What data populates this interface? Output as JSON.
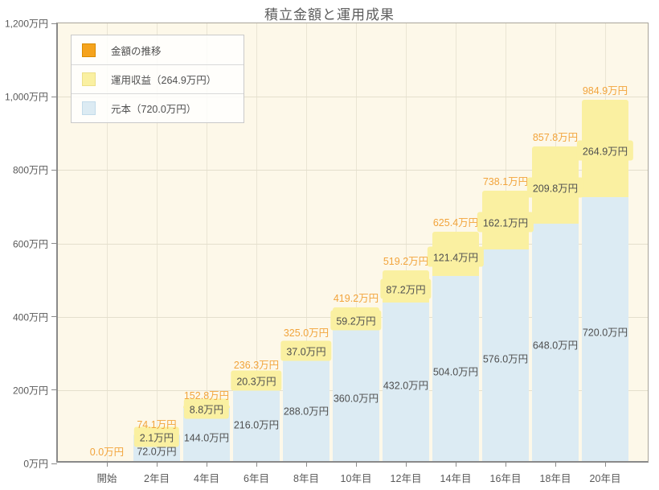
{
  "title": "積立金額と運用成果",
  "legend": {
    "items": [
      {
        "name": "amount-transition",
        "label": "金額の推移",
        "color": "#f5a31d",
        "border": "#d98b00"
      },
      {
        "name": "investment-return",
        "label": "運用収益（264.9万円）",
        "color": "#faf0a1",
        "border": "#ece089"
      },
      {
        "name": "principal",
        "label": "元本（720.0万円）",
        "color": "#dcebf3",
        "border": "#c3dbea"
      }
    ]
  },
  "chart_data": {
    "type": "bar",
    "stacked": true,
    "title": "積立金額と運用成果",
    "unit": "万円",
    "categories": [
      "開始",
      "2年目",
      "4年目",
      "6年目",
      "8年目",
      "10年目",
      "12年目",
      "14年目",
      "16年目",
      "18年目",
      "20年目"
    ],
    "series": [
      {
        "name": "元本",
        "color": "#dcebf3",
        "values": [
          0,
          72.0,
          144.0,
          216.0,
          288.0,
          360.0,
          432.0,
          504.0,
          576.0,
          648.0,
          720.0
        ]
      },
      {
        "name": "運用収益",
        "color": "#faf0a1",
        "values": [
          0,
          2.1,
          8.8,
          20.3,
          37.0,
          59.2,
          87.2,
          121.4,
          162.1,
          209.8,
          264.9
        ]
      }
    ],
    "totals": [
      0,
      74.1,
      152.8,
      236.3,
      325.0,
      419.2,
      519.2,
      625.4,
      738.1,
      857.8,
      984.9
    ],
    "labels": {
      "total": [
        "0.0万円",
        "74.1万円",
        "152.8万円",
        "236.3万円",
        "325.0万円",
        "419.2万円",
        "519.2万円",
        "625.4万円",
        "738.1万円",
        "857.8万円",
        "984.9万円"
      ],
      "income": [
        null,
        "2.1万円",
        "8.8万円",
        "20.3万円",
        "37.0万円",
        "59.2万円",
        "87.2万円",
        "121.4万円",
        "162.1万円",
        "209.8万円",
        "264.9万円"
      ],
      "principal": [
        null,
        "72.0万円",
        "144.0万円",
        "216.0万円",
        "288.0万円",
        "360.0万円",
        "432.0万円",
        "504.0万円",
        "576.0万円",
        "648.0万円",
        "720.0万円"
      ]
    },
    "yticks": [
      {
        "value": 0,
        "label": "0万円"
      },
      {
        "value": 200,
        "label": "200万円"
      },
      {
        "value": 400,
        "label": "400万円"
      },
      {
        "value": 600,
        "label": "600万円"
      },
      {
        "value": 800,
        "label": "800万円"
      },
      {
        "value": 1000,
        "label": "1,000万円"
      },
      {
        "value": 1200,
        "label": "1,200万円"
      }
    ],
    "ylim": [
      0,
      1200
    ],
    "grid": true,
    "legend_position": "top-left",
    "colors": {
      "total_label": "#f2a43c",
      "value_label": "#4f4f4f",
      "plot_bg": "#fdf8e9"
    }
  }
}
